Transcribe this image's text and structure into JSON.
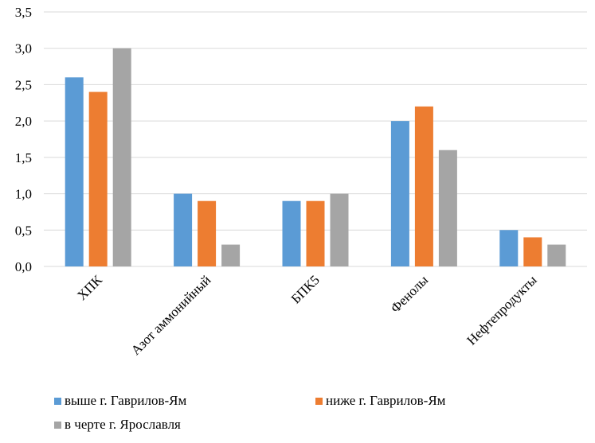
{
  "chart_data": {
    "type": "bar",
    "categories": [
      "ХПК",
      "Азот аммонийный",
      "БПК5",
      "Фенолы",
      "Нефтепродукты"
    ],
    "series": [
      {
        "name": "выше г. Гаврилов-Ям",
        "values": [
          2.6,
          1.0,
          0.9,
          2.0,
          0.5
        ],
        "color": "#5b9bd5"
      },
      {
        "name": "ниже г. Гаврилов-Ям",
        "values": [
          2.4,
          0.9,
          0.9,
          2.2,
          0.4
        ],
        "color": "#ed7d31"
      },
      {
        "name": "в черте г. Ярославля",
        "values": [
          3.0,
          0.3,
          1.0,
          1.6,
          0.3
        ],
        "color": "#a5a5a5"
      }
    ],
    "ylim": [
      0,
      3.5
    ],
    "yticks": [
      "0,0",
      "0,5",
      "1,0",
      "1,5",
      "2,0",
      "2,5",
      "3,0",
      "3,5"
    ],
    "grid": true,
    "legend_position": "bottom",
    "gridline_color": "#d9d9d9",
    "axis_color": "#d9d9d9"
  }
}
